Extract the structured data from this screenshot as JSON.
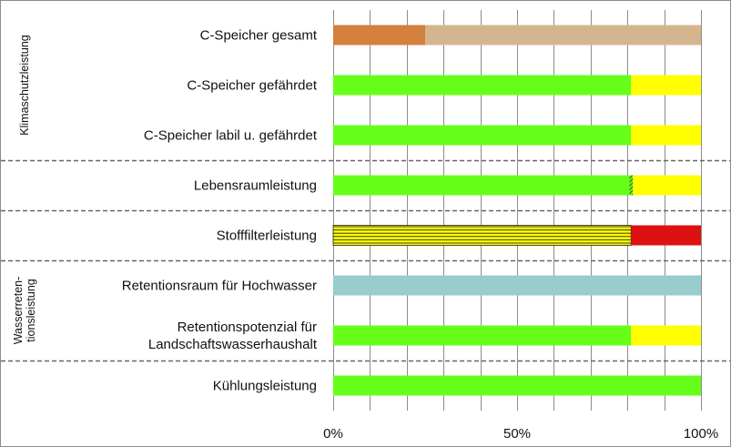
{
  "chart_data": {
    "type": "bar",
    "orientation": "horizontal",
    "stacked": true,
    "xlim": [
      0,
      100
    ],
    "x_unit": "%",
    "x_ticks": [
      {
        "value": 0,
        "label": "0%"
      },
      {
        "value": 50,
        "label": "50%"
      },
      {
        "value": 100,
        "label": "100%"
      }
    ],
    "grid": "vertical",
    "legend": "none",
    "categories": [
      {
        "label_lines": [
          "C-Speicher gesamt"
        ],
        "segments": [
          {
            "value": 25,
            "color": "#d4803f",
            "pattern": "solid"
          },
          {
            "value": 75,
            "color": "#d5b590",
            "pattern": "solid"
          }
        ]
      },
      {
        "label_lines": [
          "C-Speicher gefährdet"
        ],
        "segments": [
          {
            "value": 81,
            "color": "#66ff1a",
            "pattern": "solid"
          },
          {
            "value": 19,
            "color": "#ffff00",
            "pattern": "solid"
          }
        ]
      },
      {
        "label_lines": [
          "C-Speicher labil u. gefährdet"
        ],
        "segments": [
          {
            "value": 81,
            "color": "#66ff1a",
            "pattern": "solid"
          },
          {
            "value": 19,
            "color": "#ffff00",
            "pattern": "solid"
          }
        ]
      },
      {
        "label_lines": [
          "Lebensraumleistung"
        ],
        "segments": [
          {
            "value": 80.5,
            "color": "#66ff1a",
            "pattern": "solid"
          },
          {
            "value": 1,
            "color": "#66ff1a",
            "pattern": "diagonal"
          },
          {
            "value": 18.5,
            "color": "#ffff00",
            "pattern": "solid"
          }
        ]
      },
      {
        "label_lines": [
          "Stofffilterleistung"
        ],
        "segments": [
          {
            "value": 81,
            "color": "#ffff00",
            "pattern": "horizontal-lines"
          },
          {
            "value": 19,
            "color": "#dd1111",
            "pattern": "solid"
          }
        ]
      },
      {
        "label_lines": [
          "Retentionsraum für Hochwasser"
        ],
        "segments": [
          {
            "value": 100,
            "color": "#99cccc",
            "pattern": "solid"
          }
        ]
      },
      {
        "label_lines": [
          "Retentionspotenzial für",
          "Landschaftswasserhaushalt"
        ],
        "segments": [
          {
            "value": 81,
            "color": "#66ff1a",
            "pattern": "solid"
          },
          {
            "value": 19,
            "color": "#ffff00",
            "pattern": "solid"
          }
        ]
      },
      {
        "label_lines": [
          "Kühlungsleistung"
        ],
        "segments": [
          {
            "value": 100,
            "color": "#66ff1a",
            "pattern": "solid"
          }
        ]
      }
    ],
    "groups": [
      {
        "label_lines": [
          "Klimaschutzleistung"
        ],
        "first": 0,
        "last": 2
      },
      {
        "label_lines": [
          "Wasserreten-",
          "tionsleistung"
        ],
        "first": 5,
        "last": 6
      }
    ],
    "dashed_separators_after": [
      2,
      3,
      4,
      6
    ]
  }
}
